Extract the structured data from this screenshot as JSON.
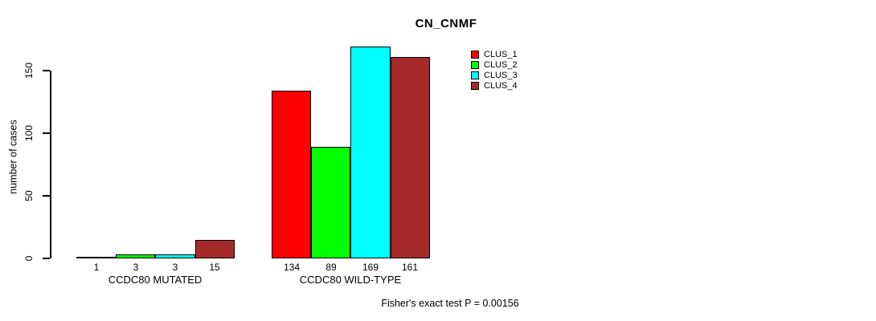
{
  "chart_data": {
    "type": "bar",
    "title": "CN_CNMF",
    "ylabel": "number of cases",
    "xlabel": "",
    "ylim": [
      0,
      150
    ],
    "yticks": [
      0,
      50,
      100,
      150
    ],
    "categories": [
      "CCDC80 MUTATED",
      "CCDC80 WILD-TYPE"
    ],
    "series": [
      {
        "name": "CLUS_1",
        "color": "#ff0000",
        "values": [
          1,
          134
        ]
      },
      {
        "name": "CLUS_2",
        "color": "#00ff00",
        "values": [
          3,
          89
        ]
      },
      {
        "name": "CLUS_3",
        "color": "#00ffff",
        "values": [
          3,
          169
        ]
      },
      {
        "name": "CLUS_4",
        "color": "#a52a2a",
        "values": [
          15,
          161
        ]
      }
    ],
    "value_labels": {
      "CCDC80 MUTATED": [
        1,
        3,
        3,
        15
      ],
      "CCDC80 WILD-TYPE": [
        134,
        89,
        169,
        161
      ]
    },
    "legend_position": "top-right",
    "grid": false,
    "background": "#ffffff",
    "footnote": "Fisher's exact test P = 0.00156"
  }
}
